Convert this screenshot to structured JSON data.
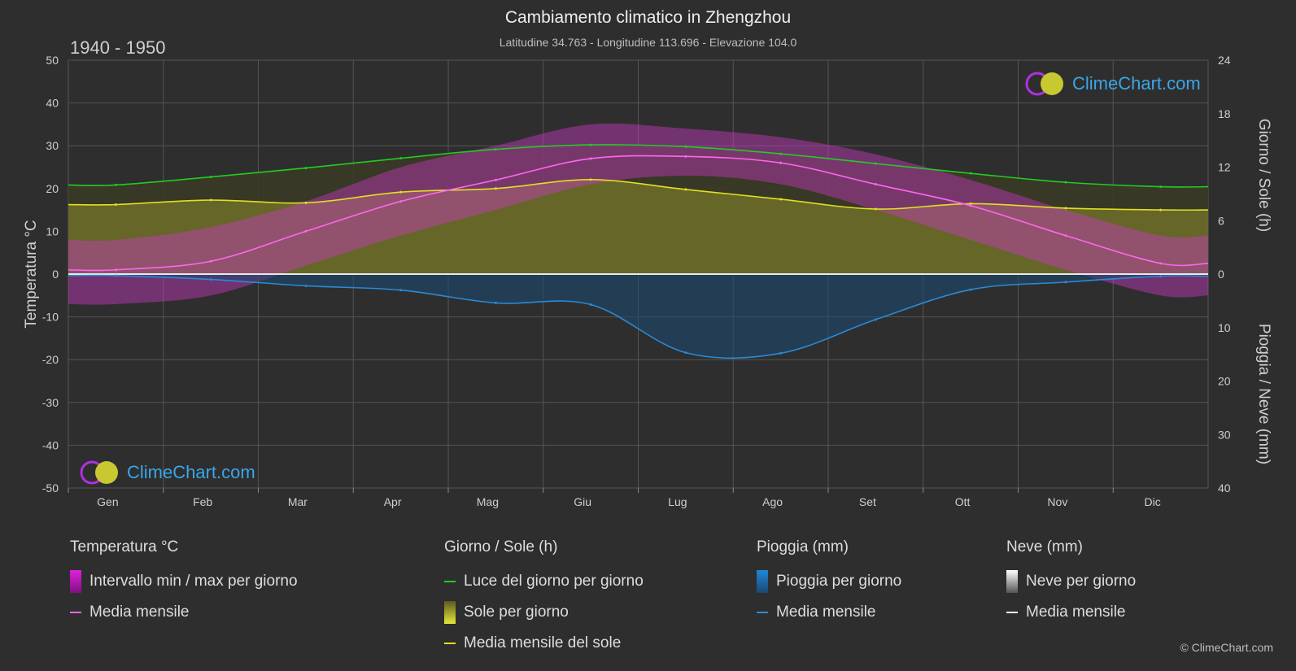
{
  "header": {
    "title": "Cambiamento climatico in Zhengzhou",
    "subtitle": "Latitudine 34.763 - Longitudine 113.696 - Elevazione 104.0",
    "period": "1940 - 1950",
    "copyright": "© ClimeChart.com",
    "logo_text": "ClimeChart.com"
  },
  "chart_data": {
    "type": "line",
    "categories": [
      "Gen",
      "Feb",
      "Mar",
      "Apr",
      "Mag",
      "Giu",
      "Lug",
      "Ago",
      "Set",
      "Ott",
      "Nov",
      "Dic"
    ],
    "axes": {
      "left": {
        "label": "Temperatura °C",
        "range": [
          -50,
          50
        ],
        "ticks": [
          50,
          40,
          30,
          20,
          10,
          0,
          -10,
          -20,
          -30,
          -40,
          -50
        ]
      },
      "right_top": {
        "label": "Giorno / Sole (h)",
        "range": [
          0,
          24
        ],
        "ticks": [
          24,
          18,
          12,
          6,
          0
        ]
      },
      "right_bottom": {
        "label": "Pioggia / Neve (mm)",
        "range": [
          0,
          40
        ],
        "ticks": [
          0,
          10,
          20,
          30,
          40
        ]
      }
    },
    "series": [
      {
        "name": "Luce del giorno per giorno",
        "unit": "h",
        "color": "#22cc22",
        "values": [
          10.0,
          10.9,
          11.9,
          13.0,
          14.0,
          14.5,
          14.3,
          13.5,
          12.4,
          11.3,
          10.3,
          9.8
        ]
      },
      {
        "name": "Media mensile del sole",
        "unit": "h",
        "color": "#e0e020",
        "values": [
          7.8,
          8.3,
          8.0,
          9.2,
          9.6,
          10.6,
          9.5,
          8.4,
          7.3,
          7.9,
          7.4,
          7.2
        ]
      },
      {
        "name": "Media mensile",
        "unit": "°C",
        "color": "#ff66ee",
        "values": [
          1.0,
          3.0,
          10.0,
          17.0,
          22.0,
          27.0,
          27.5,
          26.0,
          21.0,
          16.0,
          9.0,
          2.5
        ]
      },
      {
        "name": "Media mensile (pioggia)",
        "unit": "mm",
        "color": "#2a8ad6",
        "values": [
          0.3,
          1.0,
          2.2,
          3.0,
          5.4,
          5.7,
          14.7,
          14.8,
          8.5,
          2.9,
          1.5,
          0.4
        ]
      },
      {
        "name": "Media mensile (neve)",
        "unit": "mm",
        "color": "#ffffff",
        "values": [
          0,
          0,
          0,
          0,
          0,
          0,
          0,
          0,
          0,
          0,
          0,
          0
        ]
      }
    ],
    "temp_range_max": [
      8,
      11,
      17,
      25,
      30,
      35,
      34,
      32,
      28,
      22,
      15,
      9
    ],
    "temp_range_min": [
      -7,
      -5,
      2,
      9,
      15,
      21,
      23,
      21,
      15,
      8,
      1,
      -5
    ],
    "grid": true
  },
  "legend": {
    "groups": [
      {
        "head": "Temperatura °C",
        "items": [
          {
            "label": "Intervallo min / max per giorno",
            "kind": "grad",
            "color": "#e020e0"
          },
          {
            "label": "Media mensile",
            "kind": "line",
            "color": "#ff66ee"
          }
        ]
      },
      {
        "head": "Giorno / Sole (h)",
        "items": [
          {
            "label": "Luce del giorno per giorno",
            "kind": "line",
            "color": "#22cc22"
          },
          {
            "label": "Sole per giorno",
            "kind": "grad",
            "color": "#d8d820"
          },
          {
            "label": "Media mensile del sole",
            "kind": "line",
            "color": "#e0e020"
          }
        ]
      },
      {
        "head": "Pioggia (mm)",
        "items": [
          {
            "label": "Pioggia per giorno",
            "kind": "grad",
            "color": "#1e88d8"
          },
          {
            "label": "Media mensile",
            "kind": "line",
            "color": "#2a8ad6"
          }
        ]
      },
      {
        "head": "Neve (mm)",
        "items": [
          {
            "label": "Neve per giorno",
            "kind": "grad",
            "color": "#ffffff"
          },
          {
            "label": "Media mensile",
            "kind": "line",
            "color": "#ffffff"
          }
        ]
      }
    ]
  }
}
